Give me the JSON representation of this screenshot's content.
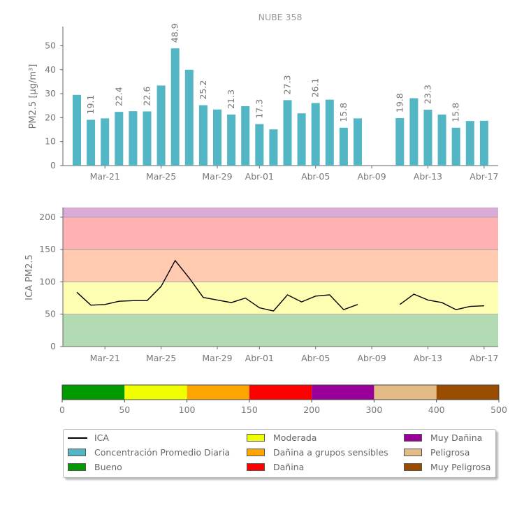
{
  "chart_data": [
    {
      "type": "bar",
      "title": "NUBE 358",
      "ylabel": "PM2.5 [μg/m³]",
      "ylim": [
        0,
        58
      ],
      "yticks": [
        0,
        10,
        20,
        30,
        40,
        50
      ],
      "x_start": "2024-03-19",
      "xtick_labels": [
        "Mar-21",
        "Mar-25",
        "Mar-29",
        "Abr-01",
        "Abr-05",
        "Abr-09",
        "Abr-13",
        "Abr-17"
      ],
      "color": "#52b6c4",
      "dates": [
        "Mar-19",
        "Mar-20",
        "Mar-21",
        "Mar-22",
        "Mar-23",
        "Mar-24",
        "Mar-25",
        "Mar-26",
        "Mar-27",
        "Mar-28",
        "Mar-29",
        "Mar-30",
        "Mar-31",
        "Abr-01",
        "Abr-02",
        "Abr-03",
        "Abr-04",
        "Abr-05",
        "Abr-06",
        "Abr-07",
        "Abr-08",
        "Abr-09",
        "Abr-10",
        "Abr-11",
        "Abr-12",
        "Abr-13",
        "Abr-14",
        "Abr-15",
        "Abr-16",
        "Abr-17",
        "Abr-18"
      ],
      "values": [
        29.5,
        19.1,
        19.7,
        22.4,
        22.7,
        22.6,
        33.4,
        48.9,
        40.0,
        25.2,
        23.4,
        21.3,
        24.8,
        17.3,
        15.1,
        27.3,
        21.8,
        26.1,
        27.5,
        15.8,
        19.7,
        null,
        null,
        19.8,
        28.1,
        23.3,
        21.3,
        15.8,
        18.6,
        18.7,
        null
      ],
      "data_labels": {
        "1": "19.1",
        "3": "22.4",
        "5": "22.6",
        "7": "48.9",
        "9": "25.2",
        "11": "21.3",
        "13": "17.3",
        "15": "27.3",
        "17": "26.1",
        "19": "15.8",
        "23": "19.8",
        "25": "23.3",
        "27": "15.8"
      }
    },
    {
      "type": "line",
      "ylabel": "ICA PM2.5",
      "ylim": [
        0,
        215
      ],
      "yticks": [
        0,
        50,
        100,
        150,
        200
      ],
      "xtick_labels": [
        "Mar-21",
        "Mar-25",
        "Mar-29",
        "Abr-01",
        "Abr-05",
        "Abr-09",
        "Abr-13",
        "Abr-17"
      ],
      "bands": [
        {
          "from": 0,
          "to": 50,
          "color": "#b3dbb3"
        },
        {
          "from": 50,
          "to": 100,
          "color": "#fdfeb2"
        },
        {
          "from": 100,
          "to": 150,
          "color": "#ffcaaf"
        },
        {
          "from": 150,
          "to": 200,
          "color": "#ffb2b2"
        },
        {
          "from": 200,
          "to": 215,
          "color": "#d9acd8"
        }
      ],
      "series": [
        {
          "name": "ICA",
          "color": "#000000",
          "values": [
            84,
            64,
            65,
            70,
            71,
            71,
            93,
            133,
            106,
            76,
            72,
            68,
            75,
            60,
            55,
            80,
            69,
            78,
            80,
            57,
            65,
            null,
            null,
            65,
            81,
            72,
            68,
            57,
            62,
            63,
            null
          ]
        }
      ]
    },
    {
      "type": "bar",
      "xticks": [
        0,
        50,
        100,
        150,
        200,
        300,
        400,
        500
      ],
      "segments": [
        {
          "color": "#009900"
        },
        {
          "color": "#f0ff00"
        },
        {
          "color": "#ffa500"
        },
        {
          "color": "#ff0000"
        },
        {
          "color": "#990099"
        },
        {
          "color": "#e2bb87"
        },
        {
          "color": "#994c00"
        }
      ]
    }
  ],
  "legend": {
    "items": [
      {
        "label": "ICA",
        "kind": "line",
        "color": "#000000"
      },
      {
        "label": "Concentración Promedio Diaria",
        "kind": "box",
        "color": "#52b6c4"
      },
      {
        "label": "Bueno",
        "kind": "box",
        "color": "#009900"
      },
      {
        "label": "Moderada",
        "kind": "box",
        "color": "#f0ff00"
      },
      {
        "label": "Dañina a grupos sensibles",
        "kind": "box",
        "color": "#ffa500"
      },
      {
        "label": "Dañina",
        "kind": "box",
        "color": "#ff0000"
      },
      {
        "label": "Muy Dañina",
        "kind": "box",
        "color": "#990099"
      },
      {
        "label": "Peligrosa",
        "kind": "box",
        "color": "#e2bb87"
      },
      {
        "label": "Muy Peligrosa",
        "kind": "box",
        "color": "#994c00"
      }
    ]
  }
}
